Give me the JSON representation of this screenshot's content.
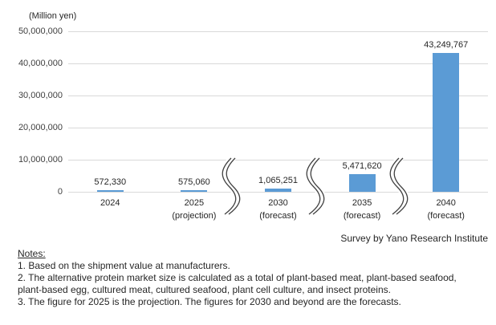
{
  "chart_data": {
    "type": "bar",
    "title": "",
    "unit_label": "(Million yen)",
    "xlabel": "",
    "ylabel": "(Million yen)",
    "categories": [
      "2024",
      "2025 (projection)",
      "2030 (forecast)",
      "2035 (forecast)",
      "2040 (forecast)"
    ],
    "category_lines": [
      [
        "2024"
      ],
      [
        "2025",
        "(projection)"
      ],
      [
        "2030",
        "(forecast)"
      ],
      [
        "2035",
        "(forecast)"
      ],
      [
        "2040",
        "(forecast)"
      ]
    ],
    "values": [
      572330,
      575060,
      1065251,
      5471620,
      43249767
    ],
    "value_labels": [
      "572,330",
      "575,060",
      "1,065,251",
      "5,471,620",
      "43,249,767"
    ],
    "ylim": [
      0,
      50000000
    ],
    "yticks": [
      0,
      10000000,
      20000000,
      30000000,
      40000000,
      50000000
    ],
    "ytick_labels": [
      "0",
      "10,000,000",
      "20,000,000",
      "30,000,000",
      "40,000,000",
      "50,000,000"
    ],
    "grid": true,
    "legend": "none",
    "bar_color": "#5b9bd5",
    "gridline_color": "#d9d9d9",
    "axis_break_after_indices": [
      1,
      2,
      3
    ]
  },
  "footer": {
    "survey_credit": "Survey by Yano Research Institute"
  },
  "notes": {
    "heading": "Notes:",
    "lines": [
      "1. Based on the shipment value at manufacturers.",
      "2. The alternative protein market size is calculated as a total of plant-based meat, plant-based seafood,",
      "plant-based egg, cultured meat,  cultured seafood, plant cell culture, and insect proteins.",
      "3. The figure for 2025 is the projection. The figures for 2030 and beyond are the forecasts."
    ]
  }
}
